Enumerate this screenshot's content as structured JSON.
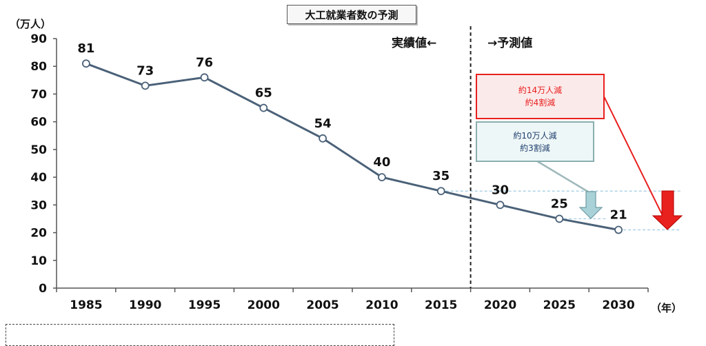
{
  "title": "大工就業者数の予測",
  "unit_label": "（万人）",
  "x_unit_label": "（年）",
  "period_labels": {
    "actual": "実績値←",
    "forecast": "→予測値"
  },
  "callouts": {
    "red": {
      "line1": "約14万人減",
      "line2": "約4割減"
    },
    "teal": {
      "line1": "約10万人減",
      "line2": "約3割減"
    }
  },
  "colors": {
    "line": "#4a6178",
    "red": "#e8201e",
    "teal": "#a9d2d8",
    "reference": "#9fc9e0"
  },
  "chart_data": {
    "type": "line",
    "title": "大工就業者数の予測",
    "ylabel": "（万人）",
    "xlabel": "（年）",
    "categories": [
      "1985",
      "1990",
      "1995",
      "2000",
      "2005",
      "2010",
      "2015",
      "2020",
      "2025",
      "2030"
    ],
    "values": [
      81,
      73,
      76,
      65,
      54,
      40,
      35,
      30,
      25,
      21
    ],
    "data_labels": [
      "81",
      "73",
      "76",
      "65",
      "54",
      "40",
      "35",
      "30",
      "25",
      "21"
    ],
    "yticks": [
      "0",
      "10",
      "20",
      "30",
      "40",
      "50",
      "60",
      "70",
      "80",
      "90"
    ],
    "ylim": [
      0,
      90
    ],
    "actual_forecast_boundary": "2015–2020",
    "grid": false,
    "legend": "none"
  }
}
